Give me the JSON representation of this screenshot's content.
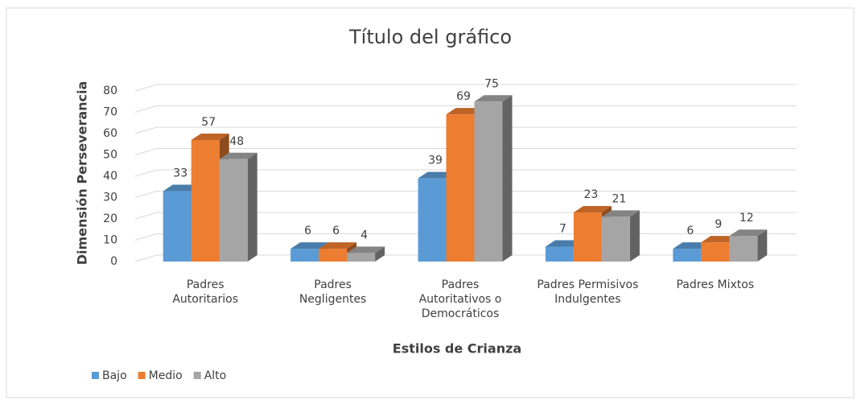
{
  "chart_data": {
    "type": "bar3d",
    "title": "Título del gráfico",
    "x_label": "Estilos de Crianza",
    "y_label": "Dimensión Perseverancia",
    "categories": [
      "Padres Autoritarios",
      "Padres Negligentes",
      "Padres Autoritativos o Democráticos",
      "Padres Permisivos Indulgentes",
      "Padres Mixtos"
    ],
    "series": [
      {
        "name": "Bajo",
        "color": "#5b9bd5",
        "values": [
          33,
          6,
          39,
          7,
          6
        ]
      },
      {
        "name": "Medio",
        "color": "#ed7d31",
        "values": [
          57,
          6,
          69,
          23,
          9
        ]
      },
      {
        "name": "Alto",
        "color": "#a5a5a5",
        "values": [
          48,
          4,
          75,
          21,
          12
        ]
      }
    ],
    "ylim": [
      0,
      80
    ],
    "yticks": [
      0,
      10,
      20,
      30,
      40,
      50,
      60,
      70,
      80
    ],
    "grid": true,
    "legend": "bottom-left"
  }
}
